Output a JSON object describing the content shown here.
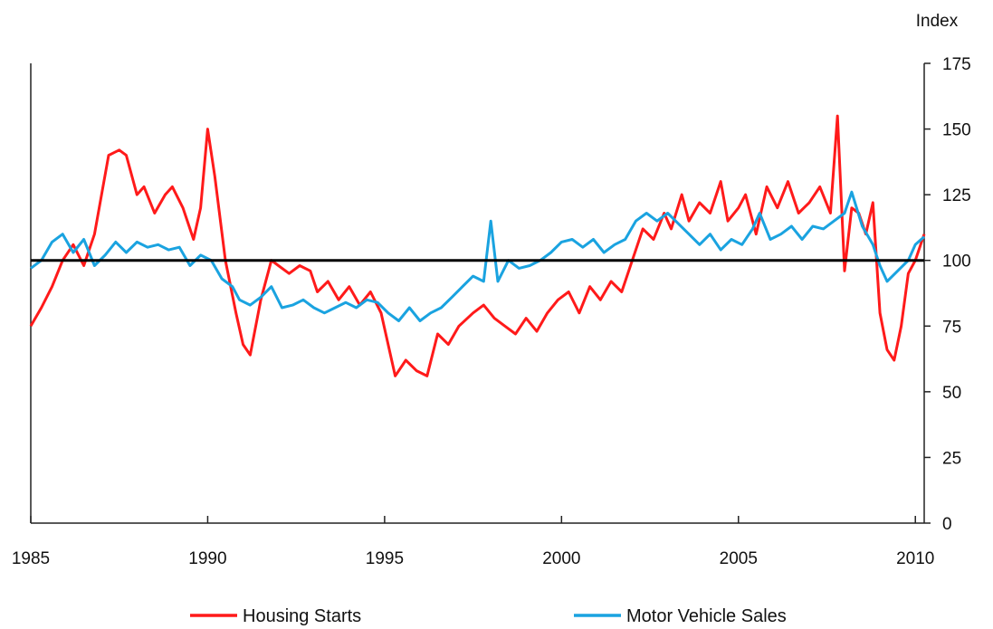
{
  "chart_data": {
    "type": "line",
    "y_axis_title": "Index",
    "y_axis_side": "right",
    "ylim": [
      0,
      175
    ],
    "yticks": [
      0,
      25,
      50,
      75,
      100,
      125,
      150,
      175
    ],
    "xlim": [
      1985,
      2010.25
    ],
    "xticks": [
      {
        "value": 1985,
        "label": "1985"
      },
      {
        "value": 1990,
        "label": "1990"
      },
      {
        "value": 1995,
        "label": "1995"
      },
      {
        "value": 2000,
        "label": "2000"
      },
      {
        "value": 2005,
        "label": "2005"
      },
      {
        "value": 2010,
        "label": "2010"
      }
    ],
    "reference_line": {
      "value": 100,
      "color": "#000000"
    },
    "grid": false,
    "legend_position": "bottom",
    "series": [
      {
        "name": "Housing Starts",
        "color": "#ff1a1a",
        "points": [
          [
            1985.0,
            75
          ],
          [
            1985.3,
            82
          ],
          [
            1985.6,
            90
          ],
          [
            1985.9,
            100
          ],
          [
            1986.2,
            106
          ],
          [
            1986.5,
            98
          ],
          [
            1986.8,
            110
          ],
          [
            1987.0,
            125
          ],
          [
            1987.2,
            140
          ],
          [
            1987.5,
            142
          ],
          [
            1987.7,
            140
          ],
          [
            1988.0,
            125
          ],
          [
            1988.2,
            128
          ],
          [
            1988.5,
            118
          ],
          [
            1988.8,
            125
          ],
          [
            1989.0,
            128
          ],
          [
            1989.3,
            120
          ],
          [
            1989.6,
            108
          ],
          [
            1989.8,
            120
          ],
          [
            1990.0,
            150
          ],
          [
            1990.2,
            132
          ],
          [
            1990.5,
            100
          ],
          [
            1990.8,
            80
          ],
          [
            1991.0,
            68
          ],
          [
            1991.2,
            64
          ],
          [
            1991.5,
            85
          ],
          [
            1991.8,
            100
          ],
          [
            1992.0,
            98
          ],
          [
            1992.3,
            95
          ],
          [
            1992.6,
            98
          ],
          [
            1992.9,
            96
          ],
          [
            1993.1,
            88
          ],
          [
            1993.4,
            92
          ],
          [
            1993.7,
            85
          ],
          [
            1994.0,
            90
          ],
          [
            1994.3,
            83
          ],
          [
            1994.6,
            88
          ],
          [
            1994.9,
            80
          ],
          [
            1995.1,
            68
          ],
          [
            1995.3,
            56
          ],
          [
            1995.6,
            62
          ],
          [
            1995.9,
            58
          ],
          [
            1996.2,
            56
          ],
          [
            1996.5,
            72
          ],
          [
            1996.8,
            68
          ],
          [
            1997.1,
            75
          ],
          [
            1997.5,
            80
          ],
          [
            1997.8,
            83
          ],
          [
            1998.1,
            78
          ],
          [
            1998.4,
            75
          ],
          [
            1998.7,
            72
          ],
          [
            1999.0,
            78
          ],
          [
            1999.3,
            73
          ],
          [
            1999.6,
            80
          ],
          [
            1999.9,
            85
          ],
          [
            2000.2,
            88
          ],
          [
            2000.5,
            80
          ],
          [
            2000.8,
            90
          ],
          [
            2001.1,
            85
          ],
          [
            2001.4,
            92
          ],
          [
            2001.7,
            88
          ],
          [
            2002.0,
            100
          ],
          [
            2002.3,
            112
          ],
          [
            2002.6,
            108
          ],
          [
            2002.9,
            118
          ],
          [
            2003.1,
            112
          ],
          [
            2003.4,
            125
          ],
          [
            2003.6,
            115
          ],
          [
            2003.9,
            122
          ],
          [
            2004.2,
            118
          ],
          [
            2004.5,
            130
          ],
          [
            2004.7,
            115
          ],
          [
            2005.0,
            120
          ],
          [
            2005.2,
            125
          ],
          [
            2005.5,
            110
          ],
          [
            2005.8,
            128
          ],
          [
            2006.1,
            120
          ],
          [
            2006.4,
            130
          ],
          [
            2006.7,
            118
          ],
          [
            2007.0,
            122
          ],
          [
            2007.3,
            128
          ],
          [
            2007.6,
            118
          ],
          [
            2007.8,
            155
          ],
          [
            2008.0,
            96
          ],
          [
            2008.2,
            120
          ],
          [
            2008.4,
            118
          ],
          [
            2008.6,
            110
          ],
          [
            2008.8,
            122
          ],
          [
            2009.0,
            80
          ],
          [
            2009.2,
            66
          ],
          [
            2009.4,
            62
          ],
          [
            2009.6,
            75
          ],
          [
            2009.8,
            95
          ],
          [
            2010.0,
            100
          ],
          [
            2010.25,
            110
          ]
        ]
      },
      {
        "name": "Motor Vehicle Sales",
        "color": "#1aa3e0",
        "points": [
          [
            1985.0,
            97
          ],
          [
            1985.3,
            100
          ],
          [
            1985.6,
            107
          ],
          [
            1985.9,
            110
          ],
          [
            1986.2,
            103
          ],
          [
            1986.5,
            108
          ],
          [
            1986.8,
            98
          ],
          [
            1987.1,
            102
          ],
          [
            1987.4,
            107
          ],
          [
            1987.7,
            103
          ],
          [
            1988.0,
            107
          ],
          [
            1988.3,
            105
          ],
          [
            1988.6,
            106
          ],
          [
            1988.9,
            104
          ],
          [
            1989.2,
            105
          ],
          [
            1989.5,
            98
          ],
          [
            1989.8,
            102
          ],
          [
            1990.1,
            100
          ],
          [
            1990.4,
            93
          ],
          [
            1990.7,
            90
          ],
          [
            1990.9,
            85
          ],
          [
            1991.2,
            83
          ],
          [
            1991.5,
            86
          ],
          [
            1991.8,
            90
          ],
          [
            1992.1,
            82
          ],
          [
            1992.4,
            83
          ],
          [
            1992.7,
            85
          ],
          [
            1993.0,
            82
          ],
          [
            1993.3,
            80
          ],
          [
            1993.6,
            82
          ],
          [
            1993.9,
            84
          ],
          [
            1994.2,
            82
          ],
          [
            1994.5,
            85
          ],
          [
            1994.8,
            84
          ],
          [
            1995.1,
            80
          ],
          [
            1995.4,
            77
          ],
          [
            1995.7,
            82
          ],
          [
            1996.0,
            77
          ],
          [
            1996.3,
            80
          ],
          [
            1996.6,
            82
          ],
          [
            1996.9,
            86
          ],
          [
            1997.2,
            90
          ],
          [
            1997.5,
            94
          ],
          [
            1997.8,
            92
          ],
          [
            1998.0,
            115
          ],
          [
            1998.2,
            92
          ],
          [
            1998.5,
            100
          ],
          [
            1998.8,
            97
          ],
          [
            1999.1,
            98
          ],
          [
            1999.4,
            100
          ],
          [
            1999.7,
            103
          ],
          [
            2000.0,
            107
          ],
          [
            2000.3,
            108
          ],
          [
            2000.6,
            105
          ],
          [
            2000.9,
            108
          ],
          [
            2001.2,
            103
          ],
          [
            2001.5,
            106
          ],
          [
            2001.8,
            108
          ],
          [
            2002.1,
            115
          ],
          [
            2002.4,
            118
          ],
          [
            2002.7,
            115
          ],
          [
            2003.0,
            118
          ],
          [
            2003.3,
            114
          ],
          [
            2003.6,
            110
          ],
          [
            2003.9,
            106
          ],
          [
            2004.2,
            110
          ],
          [
            2004.5,
            104
          ],
          [
            2004.8,
            108
          ],
          [
            2005.1,
            106
          ],
          [
            2005.4,
            112
          ],
          [
            2005.6,
            118
          ],
          [
            2005.9,
            108
          ],
          [
            2006.2,
            110
          ],
          [
            2006.5,
            113
          ],
          [
            2006.8,
            108
          ],
          [
            2007.1,
            113
          ],
          [
            2007.4,
            112
          ],
          [
            2007.7,
            115
          ],
          [
            2008.0,
            118
          ],
          [
            2008.2,
            126
          ],
          [
            2008.5,
            113
          ],
          [
            2008.8,
            106
          ],
          [
            2009.0,
            98
          ],
          [
            2009.2,
            92
          ],
          [
            2009.5,
            96
          ],
          [
            2009.8,
            100
          ],
          [
            2010.0,
            106
          ],
          [
            2010.25,
            109
          ]
        ]
      }
    ]
  }
}
